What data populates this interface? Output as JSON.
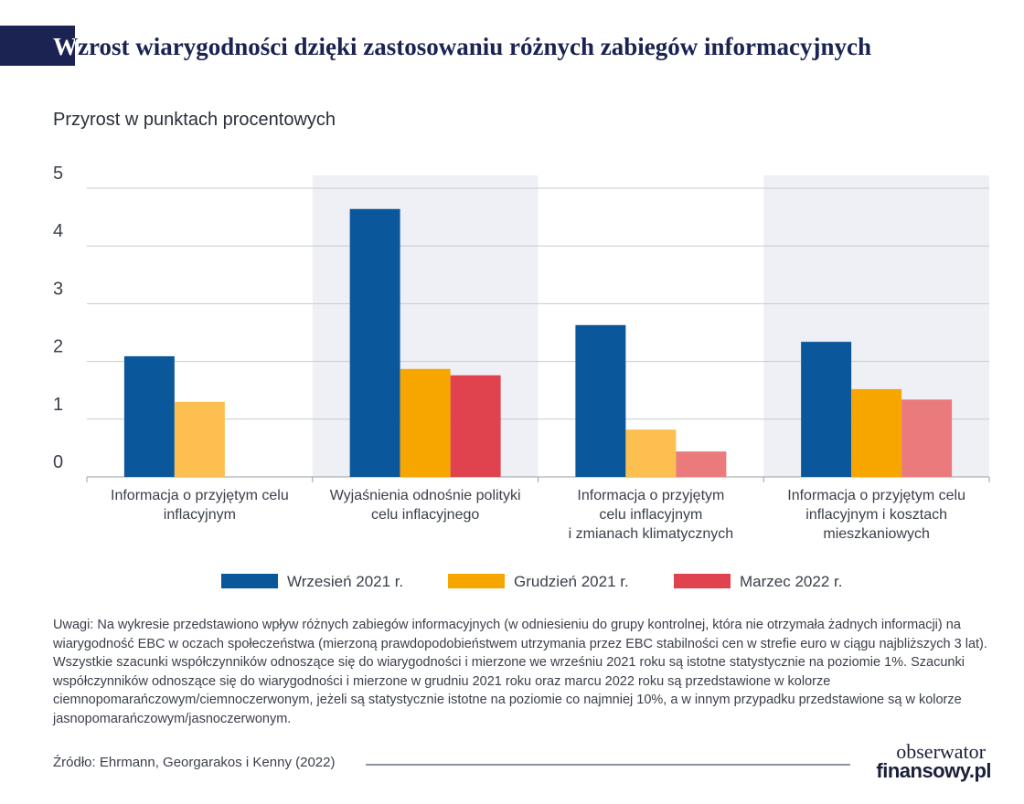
{
  "chart_data": {
    "type": "bar",
    "title": "Wzrost wiarygodności dzięki zastosowaniu różnych zabiegów informacyjnych",
    "subtitle": "Przyrost w punktach procentowych",
    "categories": [
      "Informacja o przyjętym celu\ninflacyjnym",
      "Wyjaśnienia odnośnie polityki\ncelu inflacyjnego",
      "Informacja o przyjętym\ncelu inflacyjnym\ni zmianach klimatycznych",
      "Informacja o przyjętym celu\ninflacyjnym i kosztach\nmieszkaniowych"
    ],
    "series": [
      {
        "name": "Wrzesień 2021 r.",
        "color": "#0b579c",
        "values": [
          2.09,
          4.64,
          2.63,
          2.34
        ],
        "point_colors": [
          "#0b579c",
          "#0b579c",
          "#0b579c",
          "#0b579c"
        ]
      },
      {
        "name": "Grudzień 2021 r.",
        "color": "#f7a600",
        "values": [
          1.3,
          1.87,
          0.82,
          1.52
        ],
        "point_colors": [
          "#fdbf4f",
          "#f7a600",
          "#fdbf4f",
          "#f7a600"
        ]
      },
      {
        "name": "Marzec 2022 r.",
        "color": "#e0434d",
        "values": [
          null,
          1.76,
          0.44,
          1.34
        ],
        "point_colors": [
          "#e0434d",
          "#e0434d",
          "#ea7a7c",
          "#ea7a7c"
        ]
      }
    ],
    "ylim": [
      0,
      5
    ],
    "yticks": [
      0,
      1,
      2,
      3,
      4,
      5
    ],
    "grid": true,
    "notes": "Uwagi: Na wykresie przedstawiono wpływ różnych zabiegów informacyjnych (w odniesieniu do grupy kontrolnej, która nie otrzymała żadnych informacji) na wiarygodność EBC w oczach społeczeństwa (mierzoną prawdopodobieństwem utrzymania przez EBC stabilności cen w strefie euro w ciągu najbliższych 3 lat). Wszystkie szacunki współczynników odnoszące się do wiarygodności i mierzone we wrześniu 2021 roku są istotne statystycznie na poziomie 1%. Szacunki współczynników odnoszące się do wiarygodności i mierzone w grudniu 2021 roku oraz marcu 2022 roku są przedstawione w kolorze ciemnopomarańczowym/ciemnoczerwonym, jeżeli są statystycznie istotne na poziomie co najmniej 10%, a w innym przypadku przedstawione są w kolorze jasnopomarańczowym/jasnoczerwonym.",
    "source": "Źródło: Ehrmann, Georgarakos i Kenny (2022)",
    "logo": [
      "obserwator",
      "finansowy.pl"
    ]
  }
}
